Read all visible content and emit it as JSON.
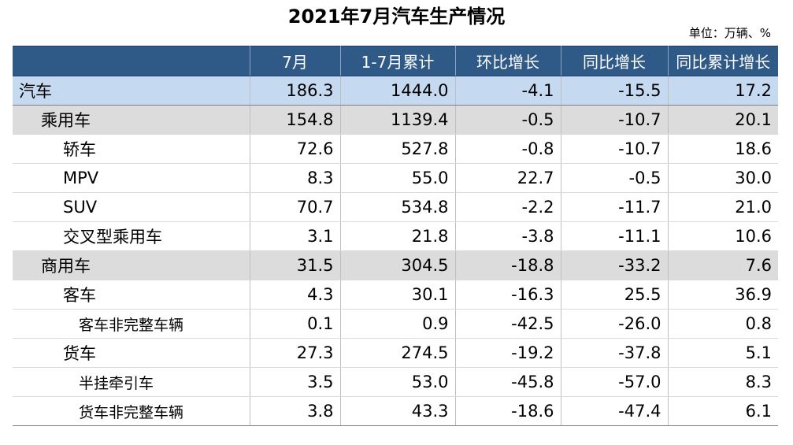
{
  "title": "2021年7月汽车生产情况",
  "unit": "单位：万辆、%",
  "table": {
    "headers": [
      "",
      "7月",
      "1-7月累计",
      "环比增长",
      "同比增长",
      "同比累计增长"
    ],
    "rows": [
      {
        "name": "汽车",
        "level": 0,
        "values": [
          "186.3",
          "1444.0",
          "-4.1",
          "-15.5",
          "17.2"
        ]
      },
      {
        "name": "乘用车",
        "level": 1,
        "values": [
          "154.8",
          "1139.4",
          "-0.5",
          "-10.7",
          "20.1"
        ]
      },
      {
        "name": "轿车",
        "level": 2,
        "values": [
          "72.6",
          "527.8",
          "-0.8",
          "-10.7",
          "18.6"
        ]
      },
      {
        "name": "MPV",
        "level": 2,
        "values": [
          "8.3",
          "55.0",
          "22.7",
          "-0.5",
          "30.0"
        ]
      },
      {
        "name": "SUV",
        "level": 2,
        "values": [
          "70.7",
          "534.8",
          "-2.2",
          "-11.7",
          "21.0"
        ]
      },
      {
        "name": "交叉型乘用车",
        "level": 2,
        "values": [
          "3.1",
          "21.8",
          "-3.8",
          "-11.1",
          "10.6"
        ]
      },
      {
        "name": "商用车",
        "level": 1,
        "values": [
          "31.5",
          "304.5",
          "-18.8",
          "-33.2",
          "7.6"
        ]
      },
      {
        "name": "客车",
        "level": 2,
        "values": [
          "4.3",
          "30.1",
          "-16.3",
          "25.5",
          "36.9"
        ]
      },
      {
        "name": "客车非完整车辆",
        "level": 3,
        "values": [
          "0.1",
          "0.9",
          "-42.5",
          "-26.0",
          "0.8"
        ]
      },
      {
        "name": "货车",
        "level": 2,
        "values": [
          "27.3",
          "274.5",
          "-19.2",
          "-37.8",
          "5.1"
        ]
      },
      {
        "name": "半挂牵引车",
        "level": 3,
        "values": [
          "3.5",
          "53.0",
          "-45.8",
          "-57.0",
          "8.3"
        ]
      },
      {
        "name": "货车非完整车辆",
        "level": 3,
        "values": [
          "3.8",
          "43.3",
          "-18.6",
          "-47.4",
          "6.1"
        ]
      }
    ]
  },
  "colors": {
    "header_bg": "#2f5a88",
    "total_row_bg": "#c5daf0",
    "category_row_bg": "#dcdcdc"
  }
}
